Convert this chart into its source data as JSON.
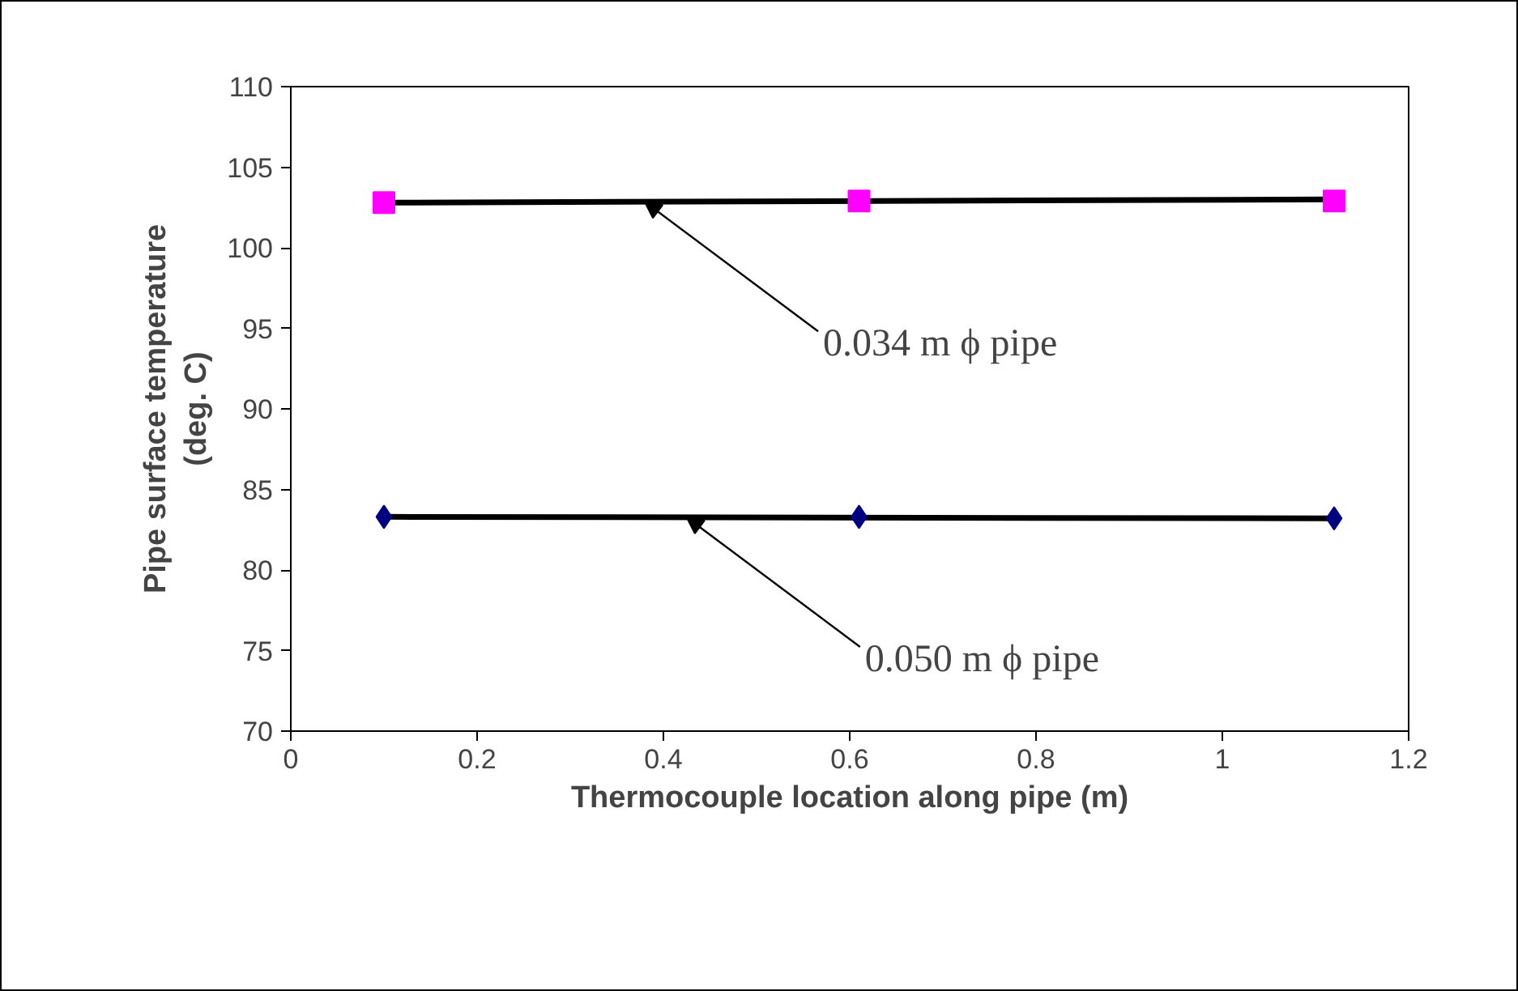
{
  "chart_data": {
    "type": "scatter",
    "xlabel": "Thermocouple location along pipe (m)",
    "ylabel": "Pipe surface temperature\n(deg. C)",
    "xlim": [
      0,
      1.2
    ],
    "xticks": [
      0,
      0.2,
      0.4,
      0.6,
      0.8,
      1,
      1.2
    ],
    "ylim": [
      70,
      110
    ],
    "yticks": [
      70,
      75,
      80,
      85,
      90,
      95,
      100,
      105,
      110
    ],
    "grid": false,
    "series": [
      {
        "type": "line",
        "color": "#000000",
        "x": [
          0.1,
          1.12
        ],
        "values": [
          102.8,
          103.0
        ]
      },
      {
        "type": "line",
        "color": "#000000",
        "x": [
          0.1,
          1.12
        ],
        "values": [
          83.3,
          83.2
        ]
      },
      {
        "color": "#ff00ff",
        "x": [
          0.1,
          0.61,
          1.12
        ],
        "values": [
          102.8,
          102.9,
          102.9
        ],
        "marker": "square"
      },
      {
        "color": "#000080",
        "x": [
          0.1,
          0.61,
          1.12
        ],
        "values": [
          83.3,
          83.3,
          83.2
        ],
        "marker": "diamond"
      }
    ],
    "annotations": [
      {
        "text": "0.034 m ϕ pipe",
        "x": 0.38,
        "y": 102.85
      },
      {
        "text": "0.050 m ϕ pipe",
        "x": 0.425,
        "y": 83.27
      }
    ]
  }
}
